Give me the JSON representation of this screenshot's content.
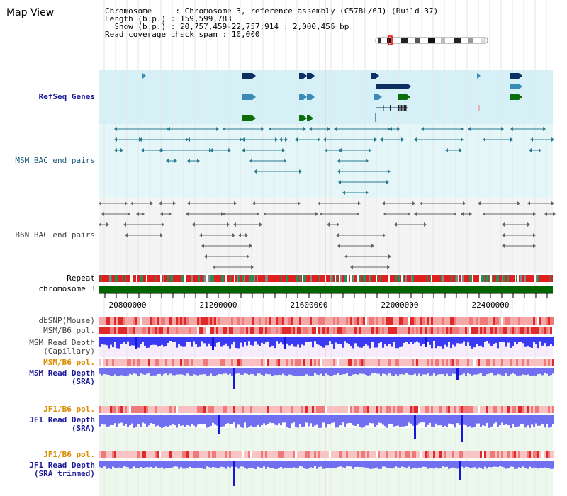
{
  "title": "Map View",
  "info": {
    "line1": "Chromosome     : Chromosome 3, reference assembly (C57BL/6J) (Build 37)",
    "line2": "Length (b.p.) : 159,599,783",
    "line3": "  Show (b.p.) : 20,757,459-22,757,914 : 2,000,456 bp",
    "line4": "Read coverage check span : 10,000"
  },
  "tracks": {
    "refseq": "RefSeq Genes",
    "msm_bac": "MSM BAC end pairs",
    "b6n_bac": "B6N BAC end pairs",
    "repeat": "Repeat",
    "chromosome": "chromosome 3",
    "dbsnp": "dbSNP(Mouse)",
    "msm_b6_pol_1": "MSM/B6 pol.",
    "msm_depth_cap_1": "MSM Read Depth",
    "msm_depth_cap_2": "(Capillary)",
    "msm_b6_pol_2": "MSM/B6 pol.",
    "msm_depth_sra_1": "MSM Read Depth",
    "msm_depth_sra_2": "(SRA)",
    "jf1_pol_1": "JF1/B6 pol.",
    "jf1_depth_sra_1": "JF1 Read Depth",
    "jf1_depth_sra_2": "(SRA)",
    "jf1_pol_2": "JF1/B6 pol.",
    "jf1_depth_trim_1": "JF1 Read Depth",
    "jf1_depth_trim_2": "(SRA trimmed)"
  },
  "axis": {
    "ticks": [
      "20800000",
      "21200000",
      "21600000",
      "22000000",
      "22400000"
    ]
  },
  "colors": {
    "refseq_bg": "#d6f0f8",
    "msm_bg": "#e4f6f8",
    "b6n_bg": "#f4f4f4",
    "chromosome": "#006600",
    "repeat_red": "#e02020",
    "repeat_green": "#2e8b57",
    "depth_blue": "#6f6ff0",
    "depth_dark": "#1515e0",
    "gene_dark": "#0b2e63",
    "gene_mid": "#3a8bb5",
    "gene_green": "#0a6e0a"
  }
}
